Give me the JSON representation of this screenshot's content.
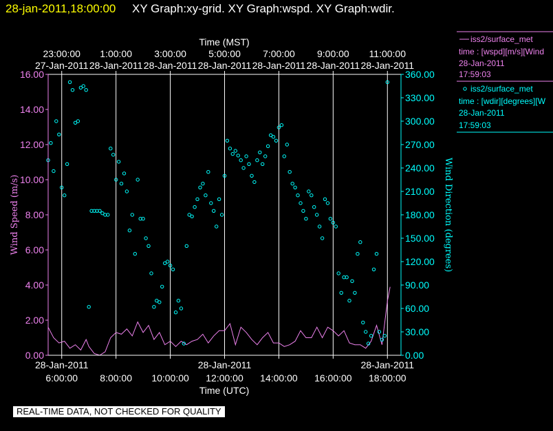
{
  "header": {
    "timestamp": "28-jan-2011,18:00:00",
    "graphs": "XY Graph:xy-grid.  XY Graph:wspd.  XY Graph:wdir."
  },
  "legend": {
    "speed_line_label": "iss2/surface_met",
    "speed_desc": "time : [wspd][m/s][Wind",
    "speed_date": "28-Jan-2011",
    "speed_time": "17:59:03",
    "dir_label": "iss2/surface_met",
    "dir_desc": "time : [wdir][degrees][W",
    "dir_date": "28-Jan-2011",
    "dir_time": "17:59:03"
  },
  "disclaimer": "REAL-TIME DATA, NOT CHECKED FOR QUALITY",
  "colors": {
    "speed": "#ee82ee",
    "direction": "#00ffff",
    "header": "#ffff00",
    "axis": "#ffffff"
  },
  "chart_data": {
    "type": "line",
    "title": "",
    "xlabel_bottom": "Time (UTC)",
    "xlabel_top": "Time (MST)",
    "ylabel_left": "Wind Speed (m/s)",
    "ylabel_right": "Wind Direction (degrees)",
    "xlim_hours_utc": [
      5.5,
      18.5
    ],
    "ylim_left": [
      0,
      16
    ],
    "ylim_right": [
      0,
      360
    ],
    "grid": "vertical lines at 2-hour intervals",
    "bottom_ticks": [
      {
        "hour": 6,
        "date": "28-Jan-2011",
        "time": "6:00:00"
      },
      {
        "hour": 8,
        "date": "",
        "time": "8:00:00"
      },
      {
        "hour": 10,
        "date": "",
        "time": "10:00:00"
      },
      {
        "hour": 12,
        "date": "28-Jan-2011",
        "time": "12:00:00"
      },
      {
        "hour": 14,
        "date": "",
        "time": "14:00:00"
      },
      {
        "hour": 16,
        "date": "",
        "time": "16:00:00"
      },
      {
        "hour": 18,
        "date": "28-Jan-2011",
        "time": "18:00:00"
      }
    ],
    "top_ticks": [
      {
        "hour": 6,
        "time": "23:00:00",
        "date": "27-Jan-2011"
      },
      {
        "hour": 8,
        "time": "1:00:00",
        "date": "28-Jan-2011"
      },
      {
        "hour": 10,
        "time": "3:00:00",
        "date": "28-Jan-2011"
      },
      {
        "hour": 12,
        "time": "5:00:00",
        "date": "28-Jan-2011"
      },
      {
        "hour": 14,
        "time": "7:00:00",
        "date": "28-Jan-2011"
      },
      {
        "hour": 16,
        "time": "9:00:00",
        "date": "28-Jan-2011"
      },
      {
        "hour": 18,
        "time": "11:00:00",
        "date": "28-Jan-2011"
      }
    ],
    "left_ticks": [
      "0.00",
      "2.00",
      "4.00",
      "6.00",
      "8.00",
      "10.00",
      "12.00",
      "14.00",
      "16.00"
    ],
    "right_ticks": [
      "0.00",
      "30.00",
      "60.00",
      "90.00",
      "120.00",
      "150.00",
      "180.00",
      "210.00",
      "240.00",
      "270.00",
      "300.00",
      "330.00",
      "360.00"
    ],
    "series": [
      {
        "name": "iss2/surface_met",
        "quantity": "wspd (m/s)",
        "style": "line",
        "x": [
          5.5,
          5.7,
          5.9,
          6.1,
          6.3,
          6.5,
          6.7,
          6.9,
          7.0,
          7.2,
          7.4,
          7.6,
          7.8,
          8.0,
          8.2,
          8.4,
          8.6,
          8.8,
          9.0,
          9.2,
          9.4,
          9.6,
          9.8,
          10.0,
          10.2,
          10.4,
          10.6,
          10.8,
          11.0,
          11.2,
          11.4,
          11.6,
          11.8,
          12.0,
          12.2,
          12.4,
          12.6,
          12.8,
          13.0,
          13.2,
          13.4,
          13.6,
          13.8,
          14.0,
          14.2,
          14.4,
          14.6,
          14.8,
          15.0,
          15.2,
          15.4,
          15.6,
          15.8,
          16.0,
          16.2,
          16.4,
          16.6,
          16.8,
          17.0,
          17.2,
          17.4,
          17.6,
          17.8,
          18.0,
          18.1
        ],
        "values": [
          1.6,
          1.0,
          0.7,
          0.8,
          0.4,
          0.6,
          0.3,
          0.9,
          0.5,
          0.1,
          0.0,
          0.2,
          1.0,
          1.3,
          1.2,
          1.5,
          1.1,
          1.9,
          1.3,
          1.7,
          0.9,
          1.3,
          0.6,
          0.8,
          0.5,
          0.8,
          0.6,
          0.8,
          0.9,
          1.2,
          0.7,
          1.1,
          1.4,
          1.4,
          1.8,
          0.6,
          1.6,
          1.3,
          0.9,
          0.6,
          1.0,
          1.3,
          0.7,
          0.7,
          0.5,
          0.6,
          0.8,
          1.4,
          1.0,
          1.0,
          1.6,
          1.0,
          1.6,
          1.4,
          1.1,
          1.4,
          0.7,
          0.6,
          0.6,
          0.4,
          0.8,
          1.7,
          0.6,
          3.1,
          3.9
        ]
      },
      {
        "name": "iss2/surface_met",
        "quantity": "wdir (degrees)",
        "style": "circle-markers",
        "x": [
          5.5,
          5.6,
          5.7,
          5.8,
          5.9,
          6.0,
          6.1,
          6.2,
          6.3,
          6.4,
          6.5,
          6.6,
          6.7,
          6.8,
          6.9,
          7.0,
          7.1,
          7.2,
          7.3,
          7.4,
          7.5,
          7.6,
          7.7,
          7.8,
          7.9,
          8.0,
          8.1,
          8.2,
          8.3,
          8.4,
          8.5,
          8.6,
          8.7,
          8.8,
          8.9,
          9.0,
          9.1,
          9.2,
          9.3,
          9.4,
          9.5,
          9.6,
          9.7,
          9.8,
          9.9,
          10.0,
          10.1,
          10.2,
          10.3,
          10.4,
          10.5,
          10.6,
          10.7,
          10.8,
          10.9,
          11.0,
          11.1,
          11.2,
          11.3,
          11.4,
          11.5,
          11.6,
          11.7,
          11.8,
          11.9,
          12.0,
          12.1,
          12.2,
          12.3,
          12.4,
          12.5,
          12.6,
          12.7,
          12.8,
          12.9,
          13.0,
          13.1,
          13.2,
          13.3,
          13.4,
          13.5,
          13.6,
          13.7,
          13.8,
          13.9,
          14.0,
          14.1,
          14.2,
          14.3,
          14.4,
          14.5,
          14.6,
          14.7,
          14.8,
          14.9,
          15.0,
          15.1,
          15.2,
          15.3,
          15.4,
          15.5,
          15.6,
          15.7,
          15.8,
          15.9,
          16.0,
          16.1,
          16.2,
          16.3,
          16.4,
          16.5,
          16.6,
          16.7,
          16.8,
          16.9,
          17.0,
          17.1,
          17.2,
          17.3,
          17.4,
          17.5,
          17.6,
          17.7,
          17.8,
          17.9,
          18.0
        ],
        "values": [
          250,
          272,
          236,
          300,
          283,
          215,
          205,
          245,
          350,
          340,
          298,
          300,
          343,
          345,
          340,
          62,
          185,
          185,
          185,
          185,
          182,
          180,
          180,
          265,
          257,
          225,
          248,
          220,
          233,
          210,
          160,
          180,
          130,
          225,
          175,
          175,
          150,
          140,
          105,
          62,
          70,
          68,
          88,
          118,
          120,
          115,
          110,
          55,
          70,
          60,
          15,
          140,
          180,
          178,
          190,
          200,
          215,
          220,
          205,
          235,
          195,
          185,
          165,
          200,
          180,
          230,
          275,
          265,
          258,
          262,
          256,
          250,
          240,
          255,
          245,
          230,
          222,
          250,
          260,
          245,
          255,
          268,
          282,
          280,
          275,
          292,
          295,
          255,
          270,
          235,
          220,
          215,
          205,
          195,
          185,
          175,
          210,
          205,
          190,
          180,
          165,
          150,
          200,
          195,
          175,
          170,
          165,
          105,
          80,
          100,
          100,
          70,
          95,
          80,
          130,
          145,
          42,
          30,
          15,
          25,
          110,
          130,
          30,
          20,
          25,
          350
        ]
      }
    ]
  }
}
